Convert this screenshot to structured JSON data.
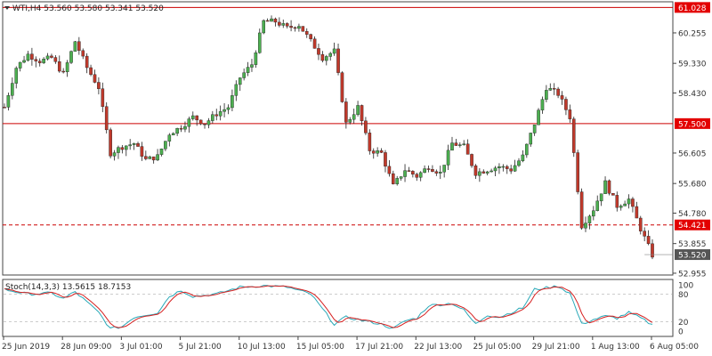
{
  "header": {
    "symbol_line": "WTI,H4  53.560 53.580 53.341 53.520",
    "indicator_line": "Stoch(14,3,3) 13.5615 18.7153"
  },
  "colors": {
    "bull": "#4caf50",
    "bear": "#c0392b",
    "level_line": "#cc0000",
    "tag_bg": "#e30000",
    "current_tag_bg": "#555555",
    "stoch_main": "#2aa9b8",
    "stoch_signal": "#d62020",
    "grid": "#bbbbbb"
  },
  "icons": {
    "collapse": "triangle-down-icon"
  },
  "price_axis": {
    "labels": [
      "61.028",
      "60.255",
      "59.330",
      "58.430",
      "57.500",
      "56.605",
      "55.680",
      "54.780",
      "54.421",
      "53.855",
      "53.520",
      "52.955"
    ]
  },
  "levels": [
    {
      "price": 61.028,
      "label": "61.028",
      "style": "solid"
    },
    {
      "price": 57.5,
      "label": "57.500",
      "style": "solid"
    },
    {
      "price": 54.421,
      "label": "54.421",
      "style": "dashed"
    }
  ],
  "current_price": {
    "price": 53.52,
    "label": "53.520"
  },
  "stoch_axis": {
    "labels": [
      "100",
      "80",
      "20",
      "0"
    ],
    "levels": [
      80,
      20
    ]
  },
  "time_axis": {
    "labels": [
      "25 Jun 2019",
      "28 Jun 09:00",
      "3 Jul 01:00",
      "5 Jul 21:00",
      "10 Jul 13:00",
      "15 Jul 05:00",
      "17 Jul 21:00",
      "22 Jul 13:00",
      "25 Jul 05:00",
      "29 Jul 21:00",
      "1 Aug 13:00",
      "6 Aug 05:00"
    ]
  },
  "chart_data": {
    "type": "candlestick",
    "symbol": "WTI",
    "timeframe": "H4",
    "ylim": [
      52.9,
      61.2
    ],
    "close_path": [
      [
        0,
        58.0
      ],
      [
        3,
        59.2
      ],
      [
        6,
        59.6
      ],
      [
        9,
        59.4
      ],
      [
        12,
        59.5
      ],
      [
        15,
        59.0
      ],
      [
        18,
        60.0
      ],
      [
        21,
        59.2
      ],
      [
        24,
        58.6
      ],
      [
        27,
        56.6
      ],
      [
        30,
        56.8
      ],
      [
        33,
        56.9
      ],
      [
        36,
        56.4
      ],
      [
        39,
        56.5
      ],
      [
        42,
        57.2
      ],
      [
        45,
        57.4
      ],
      [
        48,
        57.7
      ],
      [
        51,
        57.5
      ],
      [
        54,
        57.8
      ],
      [
        57,
        58.0
      ],
      [
        60,
        58.9
      ],
      [
        63,
        59.3
      ],
      [
        66,
        60.6
      ],
      [
        69,
        60.6
      ],
      [
        72,
        60.4
      ],
      [
        75,
        60.5
      ],
      [
        78,
        60.0
      ],
      [
        81,
        59.5
      ],
      [
        84,
        59.7
      ],
      [
        87,
        57.5
      ],
      [
        90,
        58.0
      ],
      [
        93,
        56.7
      ],
      [
        96,
        56.6
      ],
      [
        99,
        55.6
      ],
      [
        102,
        56.1
      ],
      [
        105,
        55.9
      ],
      [
        108,
        56.2
      ],
      [
        111,
        56.0
      ],
      [
        114,
        56.9
      ],
      [
        117,
        56.8
      ],
      [
        120,
        56.0
      ],
      [
        123,
        56.1
      ],
      [
        126,
        56.2
      ],
      [
        129,
        56.1
      ],
      [
        132,
        56.5
      ],
      [
        135,
        57.5
      ],
      [
        138,
        58.6
      ],
      [
        141,
        58.4
      ],
      [
        144,
        57.7
      ],
      [
        147,
        54.4
      ],
      [
        150,
        54.9
      ],
      [
        153,
        55.7
      ],
      [
        156,
        55.0
      ],
      [
        159,
        55.2
      ],
      [
        162,
        54.3
      ],
      [
        165,
        53.5
      ]
    ],
    "stoch_main_path": [
      [
        0,
        90
      ],
      [
        6,
        80
      ],
      [
        12,
        82
      ],
      [
        15,
        70
      ],
      [
        18,
        85
      ],
      [
        24,
        40
      ],
      [
        27,
        5
      ],
      [
        30,
        10
      ],
      [
        33,
        30
      ],
      [
        39,
        40
      ],
      [
        42,
        75
      ],
      [
        45,
        88
      ],
      [
        48,
        75
      ],
      [
        54,
        80
      ],
      [
        60,
        95
      ],
      [
        66,
        98
      ],
      [
        72,
        95
      ],
      [
        78,
        80
      ],
      [
        84,
        15
      ],
      [
        87,
        30
      ],
      [
        90,
        25
      ],
      [
        96,
        15
      ],
      [
        99,
        5
      ],
      [
        102,
        22
      ],
      [
        105,
        28
      ],
      [
        108,
        55
      ],
      [
        114,
        60
      ],
      [
        117,
        45
      ],
      [
        120,
        15
      ],
      [
        123,
        35
      ],
      [
        126,
        30
      ],
      [
        132,
        50
      ],
      [
        135,
        90
      ],
      [
        141,
        97
      ],
      [
        144,
        82
      ],
      [
        147,
        15
      ],
      [
        150,
        25
      ],
      [
        153,
        32
      ],
      [
        156,
        28
      ],
      [
        159,
        40
      ],
      [
        162,
        28
      ],
      [
        165,
        13
      ]
    ]
  }
}
